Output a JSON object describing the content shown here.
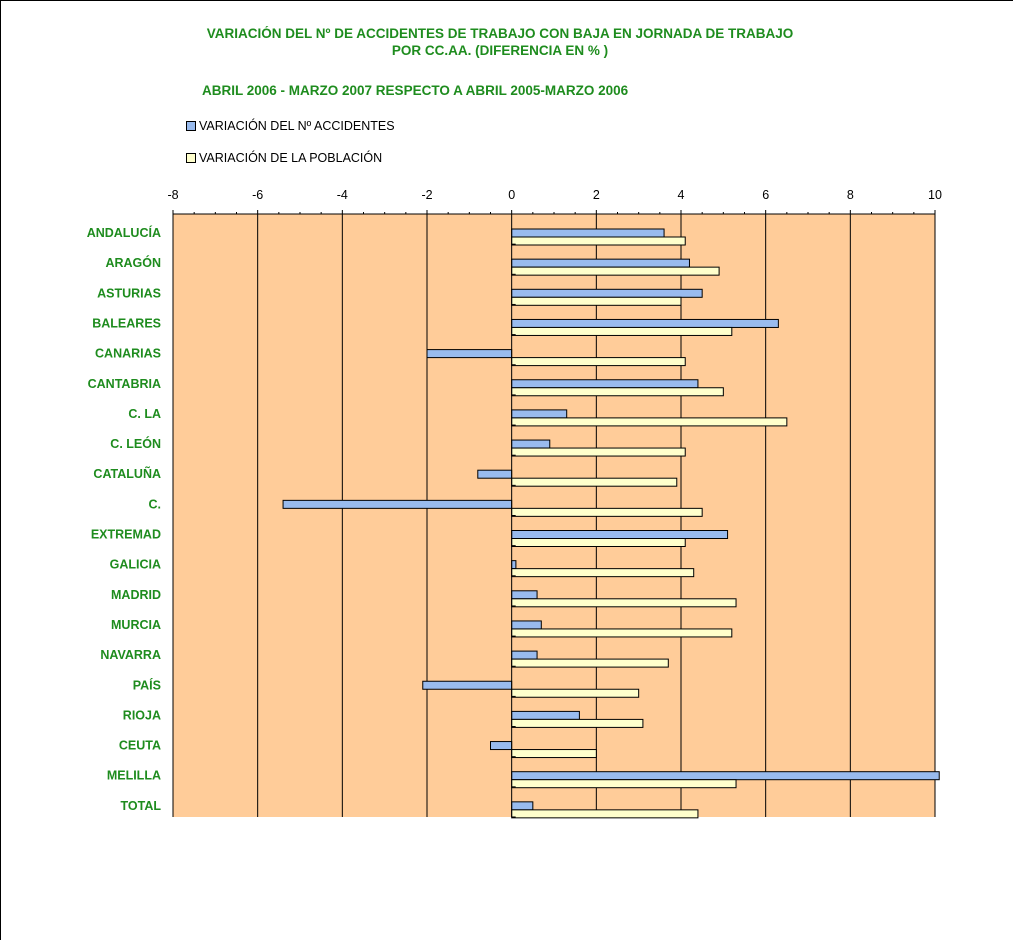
{
  "chart_data": {
    "type": "bar",
    "orientation": "horizontal",
    "title_line1": "VARIACIÓN DEL Nº DE ACCIDENTES DE TRABAJO CON BAJA EN JORNADA DE TRABAJO",
    "title_line2": "POR CC.AA. (DIFERENCIA EN % )",
    "subtitle": "ABRIL 2006 - MARZO 2007 RESPECTO A ABRIL 2005-MARZO 2006",
    "categories": [
      "ANDALUCÍA",
      "ARAGÓN",
      "ASTURIAS",
      "BALEARES",
      "CANARIAS",
      "CANTABRIA",
      "C. LA",
      "C. LEÓN",
      "CATALUÑA",
      "C.",
      "EXTREMAD",
      "GALICIA",
      "MADRID",
      "MURCIA",
      "NAVARRA",
      "PAÍS",
      "RIOJA",
      "CEUTA",
      "MELILLA",
      "TOTAL"
    ],
    "series": [
      {
        "name": "VARIACIÓN DEL Nº ACCIDENTES",
        "color": "#99bbee",
        "values": [
          3.6,
          4.2,
          4.5,
          6.3,
          -2.0,
          4.4,
          1.3,
          0.9,
          -0.8,
          -5.4,
          5.1,
          0.1,
          0.6,
          0.7,
          0.6,
          -2.1,
          1.6,
          -0.5,
          10.1,
          0.5
        ]
      },
      {
        "name": "VARIACIÓN DE LA POBLACIÓN",
        "color": "#ffffcc",
        "values": [
          4.1,
          4.9,
          4.0,
          5.2,
          4.1,
          5.0,
          6.5,
          4.1,
          3.9,
          4.5,
          4.1,
          4.3,
          5.3,
          5.2,
          3.7,
          3.0,
          3.1,
          2.0,
          5.3,
          4.4
        ]
      }
    ],
    "xlim": [
      -8,
      10
    ],
    "xticks": [
      "-8",
      "-6",
      "-4",
      "-2",
      "0",
      "2",
      "4",
      "6",
      "8",
      "10"
    ],
    "plot_background": "#ffcc99",
    "grid": true,
    "legend_position": "top-left"
  }
}
